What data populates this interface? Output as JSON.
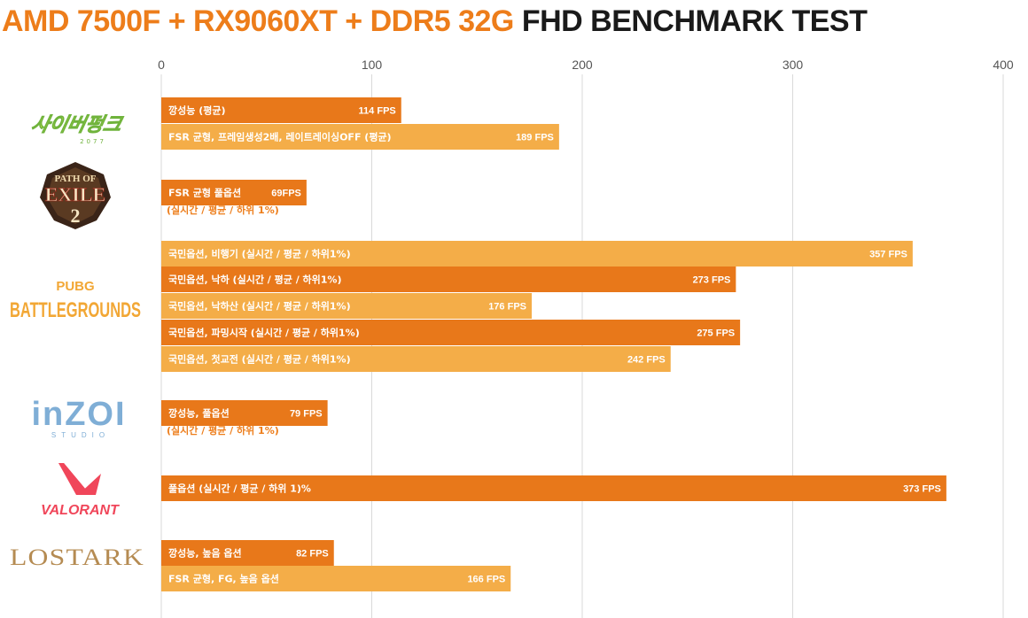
{
  "title": {
    "part1": "AMD 7500F + RX9060XT + DDR5 32G",
    "part2": "FHD BENCHMARK TEST"
  },
  "colors": {
    "accent": "#ed7d1a",
    "dark": "#e8781a",
    "light": "#f4ad48",
    "grid": "#d9d9d9",
    "title_dark": "#1a1a1a"
  },
  "logos": {
    "cyberpunk": "사이버펑크",
    "cyberpunk_sub": "2077",
    "poe_top": "PATH OF",
    "poe_mid": "EXILE",
    "poe_num": "2",
    "pubg_top": "PUBG",
    "pubg_bottom": "BATTLEGROUNDS",
    "inzoi": "inZOI",
    "inzoi_sub": "STUDIO",
    "valorant": "VALORANT",
    "lostark": "LOSTARK"
  },
  "chart_data": {
    "type": "bar",
    "orientation": "horizontal",
    "xlim": [
      0,
      400
    ],
    "xticks": [
      0,
      100,
      200,
      300,
      400
    ],
    "grid": true,
    "groups": [
      {
        "game": "Cyberpunk 2077",
        "bars": [
          {
            "label": "깡성능 (평균)",
            "value": 114,
            "value_label": "114 FPS",
            "shade": "dark"
          },
          {
            "label": "FSR 균형, 프레임생성2배, 레이트레이싱OFF (평균)",
            "value": 189,
            "value_label": "189 FPS",
            "shade": "light"
          }
        ]
      },
      {
        "game": "Path of Exile 2",
        "bars": [
          {
            "label": "FSR 균형 풀옵션",
            "value": 69,
            "value_label": "69FPS",
            "shade": "dark",
            "note": "(실시간 / 평균 / 하위 1%)"
          }
        ]
      },
      {
        "game": "PUBG: Battlegrounds",
        "bars": [
          {
            "label": "국민옵션, 비행기 (실시간 / 평균 / 하위1%)",
            "value": 357,
            "value_label": "357 FPS",
            "shade": "light"
          },
          {
            "label": "국민옵션, 낙하 (실시간 / 평균 / 하위1%)",
            "value": 273,
            "value_label": "273 FPS",
            "shade": "dark"
          },
          {
            "label": "국민옵션, 낙하산 (실시간 / 평균 / 하위1%)",
            "value": 176,
            "value_label": "176 FPS",
            "shade": "light"
          },
          {
            "label": "국민옵션, 파밍시작 (실시간 / 평균 / 하위1%)",
            "value": 275,
            "value_label": "275 FPS",
            "shade": "dark"
          },
          {
            "label": "국민옵션, 첫교전 (실시간 / 평균 / 하위1%)",
            "value": 242,
            "value_label": "242 FPS",
            "shade": "light"
          }
        ]
      },
      {
        "game": "inZOI",
        "bars": [
          {
            "label": "깡성능, 풀옵션",
            "value": 79,
            "value_label": "79 FPS",
            "shade": "dark",
            "note": "(실시간 / 평균 / 하위 1%)"
          }
        ]
      },
      {
        "game": "VALORANT",
        "bars": [
          {
            "label": "풀옵션 (실시간 / 평균 / 하위 1)%",
            "value": 373,
            "value_label": "373 FPS",
            "shade": "dark"
          }
        ]
      },
      {
        "game": "Lost Ark",
        "bars": [
          {
            "label": "깡성능, 높음 옵션",
            "value": 82,
            "value_label": "82 FPS",
            "shade": "dark"
          },
          {
            "label": "FSR 균형, FG, 높음 옵션",
            "value": 166,
            "value_label": "166 FPS",
            "shade": "light"
          }
        ]
      }
    ]
  }
}
